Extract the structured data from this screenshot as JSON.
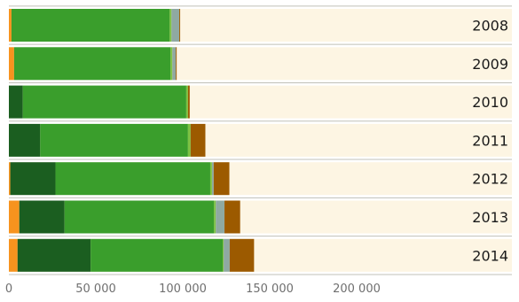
{
  "chart_data": {
    "type": "bar",
    "orientation": "horizontal",
    "stacked": true,
    "categories": [
      "2008",
      "2009",
      "2010",
      "2011",
      "2012",
      "2013",
      "2014"
    ],
    "series": [
      {
        "color": "#f7931e",
        "values": [
          1500,
          3000,
          0,
          0,
          800,
          6000,
          5000
        ]
      },
      {
        "color": "#1b5e20",
        "values": [
          0,
          0,
          8000,
          18000,
          26000,
          26000,
          42000
        ]
      },
      {
        "color": "#3a9e2c",
        "values": [
          91000,
          90000,
          94000,
          85000,
          89000,
          86000,
          76000
        ]
      },
      {
        "color": "#7cc242",
        "values": [
          1000,
          1000,
          1000,
          1500,
          1000,
          1000,
          500
        ]
      },
      {
        "color": "#8fa9a2",
        "values": [
          4500,
          2000,
          0,
          0,
          1000,
          5000,
          3500
        ]
      },
      {
        "color": "#9c5a00",
        "values": [
          500,
          500,
          1000,
          8500,
          9000,
          9000,
          14000
        ]
      }
    ],
    "xlim": [
      0,
      200000
    ],
    "x_ticks": [
      "0",
      "50 000",
      "100 000",
      "150 000",
      "200 000"
    ],
    "x_tick_values": [
      0,
      50000,
      100000,
      150000,
      200000
    ],
    "grid": true,
    "row_background": "#fdf5e3",
    "separator_color": "#c0c0b8",
    "tick_color": "#6f6f6f"
  }
}
